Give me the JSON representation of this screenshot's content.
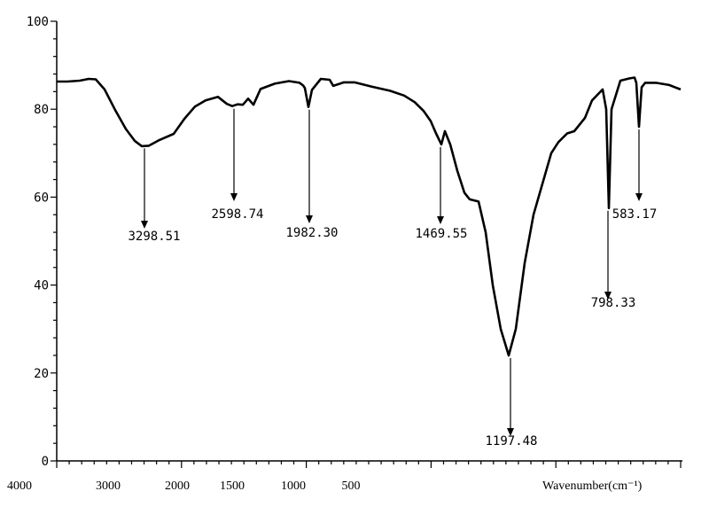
{
  "chart_data": {
    "type": "line",
    "title": "",
    "xlabel": "Wavenumber(cm⁻¹)",
    "ylabel": "",
    "ylim": [
      0,
      100
    ],
    "yticks": [
      "0",
      "20",
      "40",
      "60",
      "80",
      "100"
    ],
    "xtick_labels": [
      "4000",
      "3000",
      "2000",
      "1500",
      "1000",
      "500"
    ],
    "grid": false,
    "series": [
      {
        "values_note_free": true,
        "y": [
          86.3,
          86.3,
          86.5,
          86.9,
          86.8,
          84.5,
          79.8,
          75.5,
          72.8,
          71.6,
          71.7,
          73.0,
          74.4,
          77.8,
          80.6,
          82.0,
          82.8,
          81.2,
          80.7,
          81.1,
          81.0,
          82.4,
          81.0,
          84.6,
          85.8,
          86.4,
          86.0,
          85.4,
          84.8,
          80.5,
          84.4,
          86.9,
          86.7,
          85.3,
          86.1,
          86.1,
          85.1,
          84.2,
          83.1,
          81.6,
          79.6,
          77.3,
          74.5,
          72.0,
          75.0,
          72.0,
          66.0,
          61.0,
          59.5,
          59.0,
          52.0,
          40.0,
          30.0,
          24.0,
          30.0,
          45.0,
          56.0,
          63.0,
          70.0,
          72.5,
          74.5,
          75.0,
          78.0,
          82.0,
          84.5,
          80.0,
          57.5,
          80.0,
          86.5,
          87.0,
          87.2,
          86.0,
          76.0,
          85.0,
          86.0,
          86.0,
          85.5,
          84.5
        ]
      }
    ],
    "peaks": [
      {
        "label": "3298.51",
        "y": 71.7
      },
      {
        "label": "2598.74",
        "y": 80.7
      },
      {
        "label": "1982.30",
        "y": 80.5
      },
      {
        "label": "1469.55",
        "y": 72.0
      },
      {
        "label": "1197.48",
        "y": 24.0
      },
      {
        "label": "798.33",
        "y": 57.5
      },
      {
        "label": "583.17",
        "y": 76.0
      }
    ]
  }
}
